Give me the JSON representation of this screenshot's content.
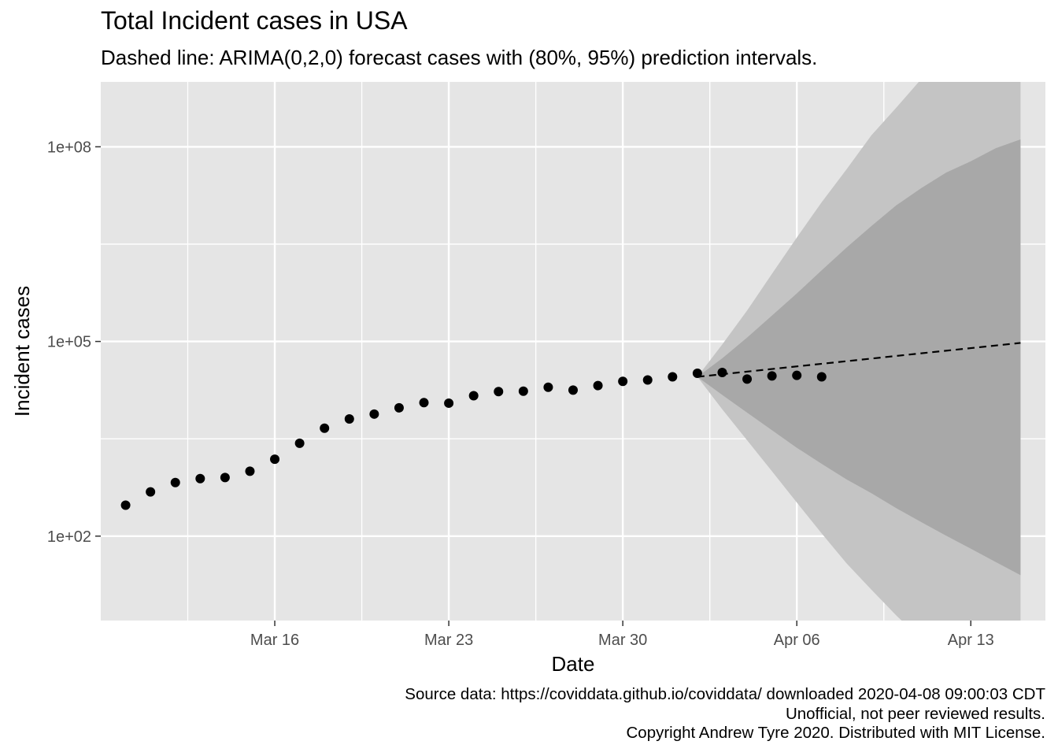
{
  "chart_data": {
    "type": "scatter",
    "title": "Total Incident cases in USA",
    "subtitle": "Dashed line: ARIMA(0,2,0) forecast cases with (80%, 95%) prediction intervals.",
    "xlabel": "Date",
    "ylabel": "Incident cases",
    "x_tick_labels": [
      "Mar 16",
      "Mar 23",
      "Mar 30",
      "Apr 06",
      "Apr 13"
    ],
    "y_tick_labels": [
      "1e+02",
      "1e+05",
      "1e+08"
    ],
    "x_ticks": [
      "2020-03-16",
      "2020-03-23",
      "2020-03-30",
      "2020-04-06",
      "2020-04-13"
    ],
    "y_ticks": [
      100,
      100000,
      100000000
    ],
    "y_scale": "log10",
    "ylim": [
      5,
      1000000000
    ],
    "xlim": [
      "2020-03-09",
      "2020-04-16"
    ],
    "grid": true,
    "observed": {
      "x": [
        "2020-03-10",
        "2020-03-11",
        "2020-03-12",
        "2020-03-13",
        "2020-03-14",
        "2020-03-15",
        "2020-03-16",
        "2020-03-17",
        "2020-03-18",
        "2020-03-19",
        "2020-03-20",
        "2020-03-21",
        "2020-03-22",
        "2020-03-23",
        "2020-03-24",
        "2020-03-25",
        "2020-03-26",
        "2020-03-27",
        "2020-03-28",
        "2020-03-29",
        "2020-03-30",
        "2020-03-31",
        "2020-04-01",
        "2020-04-02",
        "2020-04-03",
        "2020-04-04",
        "2020-04-05",
        "2020-04-06",
        "2020-04-07"
      ],
      "y": [
        300,
        480,
        670,
        770,
        800,
        1000,
        1530,
        2700,
        4600,
        6400,
        7600,
        9500,
        11400,
        11200,
        14600,
        16900,
        17100,
        19700,
        17800,
        20900,
        24300,
        25500,
        28500,
        32300,
        33300,
        26300,
        29400,
        30000,
        28500
      ]
    },
    "forecast": {
      "x": [
        "2020-04-02",
        "2020-04-15"
      ],
      "y": [
        28500,
        95000
      ]
    },
    "interval_80": {
      "x": [
        "2020-04-02",
        "2020-04-03",
        "2020-04-04",
        "2020-04-05",
        "2020-04-06",
        "2020-04-07",
        "2020-04-08",
        "2020-04-09",
        "2020-04-10",
        "2020-04-11",
        "2020-04-12",
        "2020-04-13",
        "2020-04-14",
        "2020-04-15"
      ],
      "lower": [
        28500,
        15000,
        8000,
        4300,
        2300,
        1300,
        750,
        460,
        270,
        165,
        102,
        64,
        40,
        25
      ],
      "upper": [
        28500,
        55000,
        115000,
        250000,
        550000,
        1250000,
        2800000,
        6000000,
        12500000,
        23000000,
        40000000,
        60000000,
        95000000,
        130000000
      ]
    },
    "interval_95": {
      "x": [
        "2020-04-02",
        "2020-04-03",
        "2020-04-04",
        "2020-04-05",
        "2020-04-06",
        "2020-04-07",
        "2020-04-08",
        "2020-04-09",
        "2020-04-10",
        "2020-04-11",
        "2020-04-12",
        "2020-04-13",
        "2020-04-14",
        "2020-04-15"
      ],
      "lower": [
        28500,
        9000,
        3000,
        1000,
        330,
        110,
        38,
        15,
        6,
        2.6,
        1.2,
        0.6,
        0.3,
        0.14
      ],
      "upper": [
        28500,
        90000,
        300000,
        1100000,
        4000000,
        14000000,
        45000000,
        150000000,
        400000000,
        1100000000,
        2500000000,
        6000000000,
        12000000000,
        20000000000
      ]
    }
  },
  "caption": {
    "line1": "Source data: https://coviddata.github.io/coviddata/ downloaded  2020-04-08 09:00:03 CDT",
    "line2": "Unofficial, not peer reviewed results. ",
    "line3": "Copyright Andrew Tyre 2020. Distributed with MIT License."
  },
  "colors": {
    "panel": "#e5e5e5",
    "grid": "#ffffff",
    "band_95": "#c4c4c4",
    "band_80": "#a8a8a8",
    "points": "#000000"
  }
}
